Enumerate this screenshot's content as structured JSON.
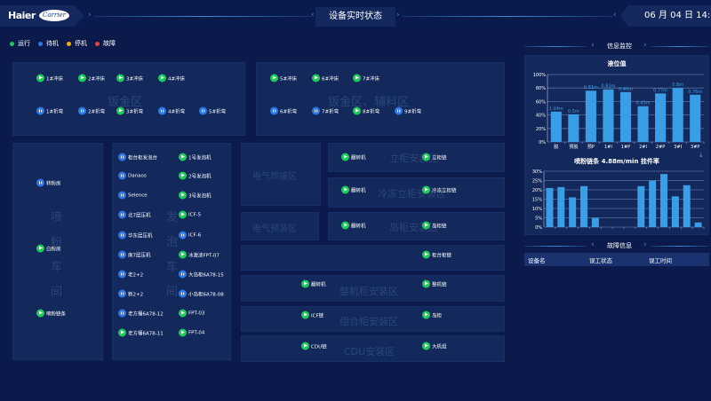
{
  "header": {
    "brand": "Haier",
    "partner": "Carrier",
    "title": "设备实时状态",
    "datetime": "06 月 04 日 14:14"
  },
  "legend": [
    {
      "label": "运行",
      "color": "#1ccc5a"
    },
    {
      "label": "待机",
      "color": "#2f77e8"
    },
    {
      "label": "停机",
      "color": "#f0b400"
    },
    {
      "label": "故障",
      "color": "#e84040"
    }
  ],
  "zones": {
    "sheet_metal": {
      "label": "钣金区",
      "devices": [
        {
          "name": "1#冲床",
          "status": "run"
        },
        {
          "name": "2#冲床",
          "status": "run"
        },
        {
          "name": "3#冲床",
          "status": "run"
        },
        {
          "name": "4#冲床",
          "status": "run"
        },
        {
          "name": "1#折弯",
          "status": "wait"
        },
        {
          "name": "2#折弯",
          "status": "wait"
        },
        {
          "name": "3#折弯",
          "status": "run"
        },
        {
          "name": "4#折弯",
          "status": "wait"
        },
        {
          "name": "5#折弯",
          "status": "wait"
        }
      ]
    },
    "sheet_aux": {
      "label": "钣金区、辅料区",
      "devices": [
        {
          "name": "5#冲床",
          "status": "run"
        },
        {
          "name": "6#冲床",
          "status": "run"
        },
        {
          "name": "7#冲床",
          "status": "run"
        },
        {
          "name": "6#折弯",
          "status": "wait"
        },
        {
          "name": "7#折弯",
          "status": "wait"
        },
        {
          "name": "8#折弯",
          "status": "run"
        },
        {
          "name": "9#折弯",
          "status": "wait"
        }
      ]
    },
    "powder": {
      "label": [
        "喷",
        "粉",
        "车",
        "间"
      ],
      "devices": [
        {
          "name": "转粉房",
          "status": "wait"
        },
        {
          "name": "白粉房",
          "status": "run"
        },
        {
          "name": "喷粉链条",
          "status": "run"
        }
      ]
    },
    "foam": {
      "label": [
        "发",
        "泡",
        "车",
        "间"
      ],
      "devices": [
        {
          "name": "柜台柜发泡台",
          "status": "wait"
        },
        {
          "name": "Danaos",
          "status": "wait"
        },
        {
          "name": "Selence",
          "status": "wait"
        },
        {
          "name": "北7层压机",
          "status": "wait"
        },
        {
          "name": "华东层压机",
          "status": "wait"
        },
        {
          "name": "南7层压机",
          "status": "wait"
        },
        {
          "name": "老2+2",
          "status": "wait"
        },
        {
          "name": "新2+2",
          "status": "wait"
        },
        {
          "name": "老方桶6A78-12",
          "status": "wait"
        },
        {
          "name": "老方桶6A78-11",
          "status": "run"
        },
        {
          "name": "1号发泡机",
          "status": "run"
        },
        {
          "name": "2号发泡机",
          "status": "run"
        },
        {
          "name": "3号发泡机",
          "status": "run"
        },
        {
          "name": "ICF-5",
          "status": "run"
        },
        {
          "name": "ICF-6",
          "status": "wait"
        },
        {
          "name": "冰激凌FPT-07",
          "status": "run"
        },
        {
          "name": "大岛柜6A78-15",
          "status": "wait"
        },
        {
          "name": "小岛柜6A78-08",
          "status": "wait"
        },
        {
          "name": "FPT-03",
          "status": "run"
        },
        {
          "name": "FPT-04",
          "status": "run"
        }
      ]
    },
    "weld": {
      "label": "电气焊接区"
    },
    "prefit": {
      "label": "电气预装区"
    },
    "upright": {
      "label": "立柜安装区",
      "devices": [
        {
          "name": "翻转机",
          "status": "run"
        },
        {
          "name": "立柜链",
          "status": "run"
        }
      ]
    },
    "frozen": {
      "label": "冷冻立柜安装区",
      "devices": [
        {
          "name": "翻转机",
          "status": "run"
        },
        {
          "name": "冷冻立柜链",
          "status": "run"
        }
      ]
    },
    "island": {
      "label": "岛柜安装区",
      "devices": [
        {
          "name": "翻转机",
          "status": "run"
        },
        {
          "name": "岛柜链",
          "status": "run"
        }
      ]
    },
    "counter": {
      "label": "",
      "devices": [
        {
          "name": "柜台柜链",
          "status": "run"
        }
      ]
    },
    "whole": {
      "label": "整机柜安装区",
      "devices": [
        {
          "name": "翻转机",
          "status": "run"
        },
        {
          "name": "整机链",
          "status": "run"
        }
      ]
    },
    "combo": {
      "label": "组合柜安装区",
      "devices": [
        {
          "name": "ICF链",
          "status": "run"
        },
        {
          "name": "岛柜",
          "status": "run"
        }
      ]
    },
    "cdu": {
      "label": "CDU安装区",
      "devices": [
        {
          "name": "CDU链",
          "status": "run"
        },
        {
          "name": "大机组",
          "status": "run"
        }
      ]
    }
  },
  "monitor": {
    "title": "信息监控"
  },
  "fault": {
    "title": "故障信息",
    "columns": [
      "设备名",
      "误工状态",
      "误工时间"
    ]
  },
  "chart_data": [
    {
      "type": "bar",
      "title": "液位值",
      "categories": [
        "脱",
        "预脱",
        "预P",
        "1#I",
        "1#P",
        "2#I",
        "2#P",
        "3#I",
        "3#P"
      ],
      "values": [
        45,
        41,
        76,
        78,
        74,
        53,
        72,
        80,
        70
      ],
      "data_labels": [
        "1.04m",
        "0.5m",
        "0.81m",
        "0.83m",
        "0.40m",
        "0.43m",
        "0.77m",
        "0.8m",
        "0.76m"
      ],
      "ylim": [
        0,
        100
      ],
      "yticks": [
        "0%",
        "20%",
        "40%",
        "60%",
        "80%",
        "100%"
      ],
      "grid": true,
      "color": "#3a9ee6"
    },
    {
      "type": "bar",
      "title": "喷粉链条 4.88m/min 挂件率",
      "values": [
        21,
        21.5,
        16,
        22,
        5,
        0,
        0,
        0,
        22,
        25,
        28.5,
        16.5,
        22.5,
        2.5
      ],
      "ylim": [
        0,
        30
      ],
      "yticks": [
        "0%",
        "5%",
        "10%",
        "15%",
        "20%",
        "25%",
        "30%"
      ],
      "grid": true,
      "color": "#3a9ee6"
    }
  ]
}
